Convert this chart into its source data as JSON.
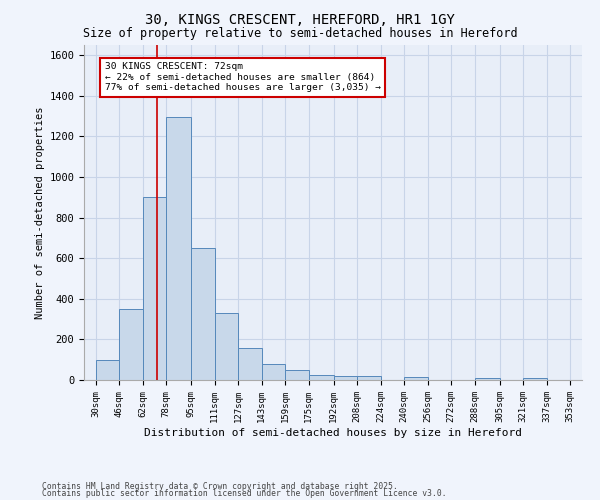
{
  "title": "30, KINGS CRESCENT, HEREFORD, HR1 1GY",
  "subtitle": "Size of property relative to semi-detached houses in Hereford",
  "xlabel": "Distribution of semi-detached houses by size in Hereford",
  "ylabel": "Number of semi-detached properties",
  "footnote1": "Contains HM Land Registry data © Crown copyright and database right 2025.",
  "footnote2": "Contains public sector information licensed under the Open Government Licence v3.0.",
  "bar_left_edges": [
    30,
    46,
    62,
    78,
    95,
    111,
    127,
    143,
    159,
    175,
    192,
    208,
    224,
    240,
    256,
    272,
    288,
    305,
    321,
    337
  ],
  "bar_widths": [
    16,
    16,
    16,
    17,
    16,
    16,
    16,
    16,
    16,
    17,
    16,
    16,
    16,
    16,
    16,
    16,
    17,
    16,
    16,
    16
  ],
  "bar_heights": [
    100,
    350,
    900,
    1295,
    650,
    330,
    160,
    80,
    48,
    25,
    18,
    20,
    0,
    15,
    0,
    0,
    10,
    0,
    10,
    0
  ],
  "bar_color": "#c8d8ea",
  "bar_edge_color": "#5588bb",
  "tick_labels": [
    "30sqm",
    "46sqm",
    "62sqm",
    "78sqm",
    "95sqm",
    "111sqm",
    "127sqm",
    "143sqm",
    "159sqm",
    "175sqm",
    "192sqm",
    "208sqm",
    "224sqm",
    "240sqm",
    "256sqm",
    "272sqm",
    "288sqm",
    "305sqm",
    "321sqm",
    "337sqm",
    "353sqm"
  ],
  "tick_positions": [
    30,
    46,
    62,
    78,
    95,
    111,
    127,
    143,
    159,
    175,
    192,
    208,
    224,
    240,
    256,
    272,
    288,
    305,
    321,
    337,
    353
  ],
  "ylim": [
    0,
    1650
  ],
  "xlim": [
    22,
    361
  ],
  "property_line_x": 72,
  "annotation_title": "30 KINGS CRESCENT: 72sqm",
  "annotation_line1": "← 22% of semi-detached houses are smaller (864)",
  "annotation_line2": "77% of semi-detached houses are larger (3,035) →",
  "annotation_box_color": "#ffffff",
  "annotation_box_edge": "#cc0000",
  "grid_color": "#c8d4e8",
  "bg_color": "#e8eef8",
  "fig_bg_color": "#f0f4fc",
  "title_fontsize": 10,
  "subtitle_fontsize": 8.5,
  "yticks": [
    0,
    200,
    400,
    600,
    800,
    1000,
    1200,
    1400,
    1600
  ]
}
